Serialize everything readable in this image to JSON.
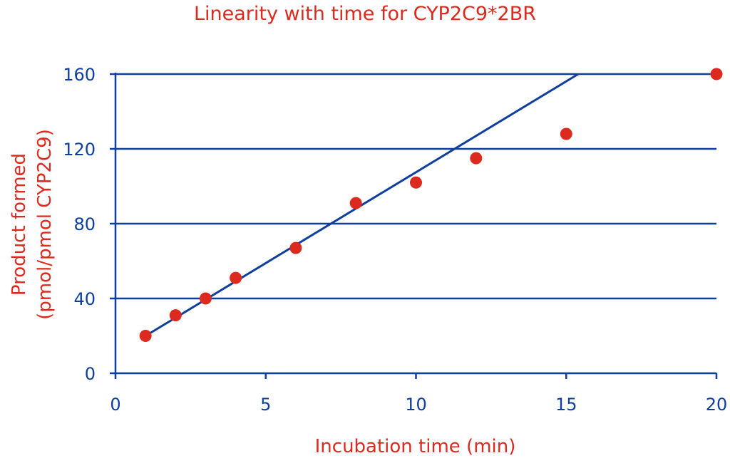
{
  "chart_data": {
    "type": "scatter",
    "title": "Linearity with time for CYP2C9*2BR",
    "xlabel": "Incubation time (min)",
    "ylabel_line1": "Product formed",
    "ylabel_line2": "(pmol/pmol CYP2C9)",
    "xlim": [
      0,
      20
    ],
    "ylim": [
      0,
      160
    ],
    "xticks": [
      0,
      5,
      10,
      15,
      20
    ],
    "yticks": [
      0,
      40,
      80,
      120,
      160
    ],
    "grid": "horizontal",
    "series": [
      {
        "x": [
          1,
          2,
          3,
          4,
          6,
          8,
          10,
          12,
          15,
          20
        ],
        "y": [
          20,
          31,
          40,
          51,
          67,
          91,
          102,
          115,
          128,
          160
        ],
        "color": "#dd2a1f"
      }
    ],
    "fit_line": {
      "x": [
        1,
        15.4
      ],
      "y": [
        20,
        160
      ],
      "color": "#0f3f9e"
    },
    "colors": {
      "axis": "#0f3f9e",
      "text": "#dd2a1f",
      "points": "#dd2a1f"
    }
  }
}
